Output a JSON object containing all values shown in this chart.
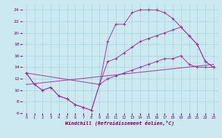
{
  "bg_color": "#cce8f0",
  "grid_color": "#99ccdd",
  "line_color": "#993399",
  "xlabel": "Windchill (Refroidissement éolien,°C)",
  "xlim": [
    -0.5,
    23.5
  ],
  "ylim": [
    6,
    25
  ],
  "yticks": [
    6,
    8,
    10,
    12,
    14,
    16,
    18,
    20,
    22,
    24
  ],
  "xticks": [
    0,
    1,
    2,
    3,
    4,
    5,
    6,
    7,
    8,
    9,
    10,
    11,
    12,
    13,
    14,
    15,
    16,
    17,
    18,
    19,
    20,
    21,
    22,
    23
  ],
  "curve1_x": [
    0,
    1,
    2,
    3,
    4,
    5,
    6,
    7,
    8,
    9,
    10,
    11,
    12,
    13,
    14,
    15,
    16,
    17,
    18,
    19,
    20,
    21,
    22,
    23
  ],
  "curve1_y": [
    13,
    11,
    10,
    10.5,
    9,
    8.5,
    7.5,
    7,
    6.5,
    11,
    18.5,
    21.5,
    21.5,
    23.5,
    24,
    24,
    24,
    23.5,
    22.5,
    21,
    19.5,
    18,
    15,
    14
  ],
  "curve2_x": [
    0,
    9,
    10,
    11,
    12,
    13,
    14,
    15,
    16,
    17,
    18,
    19,
    20,
    21,
    22,
    23
  ],
  "curve2_y": [
    13,
    11,
    15,
    15.5,
    16.5,
    17.5,
    18.5,
    19,
    19.5,
    20,
    20.5,
    21,
    19.5,
    18,
    15,
    14
  ],
  "curve3_x": [
    0,
    1,
    2,
    3,
    4,
    5,
    6,
    7,
    8,
    9,
    10,
    11,
    12,
    13,
    14,
    15,
    16,
    17,
    18,
    19,
    20,
    21,
    22,
    23
  ],
  "curve3_y": [
    13,
    11,
    10,
    10.5,
    9,
    8.5,
    7.5,
    7,
    6.5,
    11,
    12,
    12.5,
    13,
    13.5,
    14,
    14.5,
    15,
    15.5,
    15.5,
    16,
    14.5,
    14,
    14,
    14
  ],
  "line4_x": [
    0,
    23
  ],
  "line4_y": [
    11,
    14.5
  ]
}
